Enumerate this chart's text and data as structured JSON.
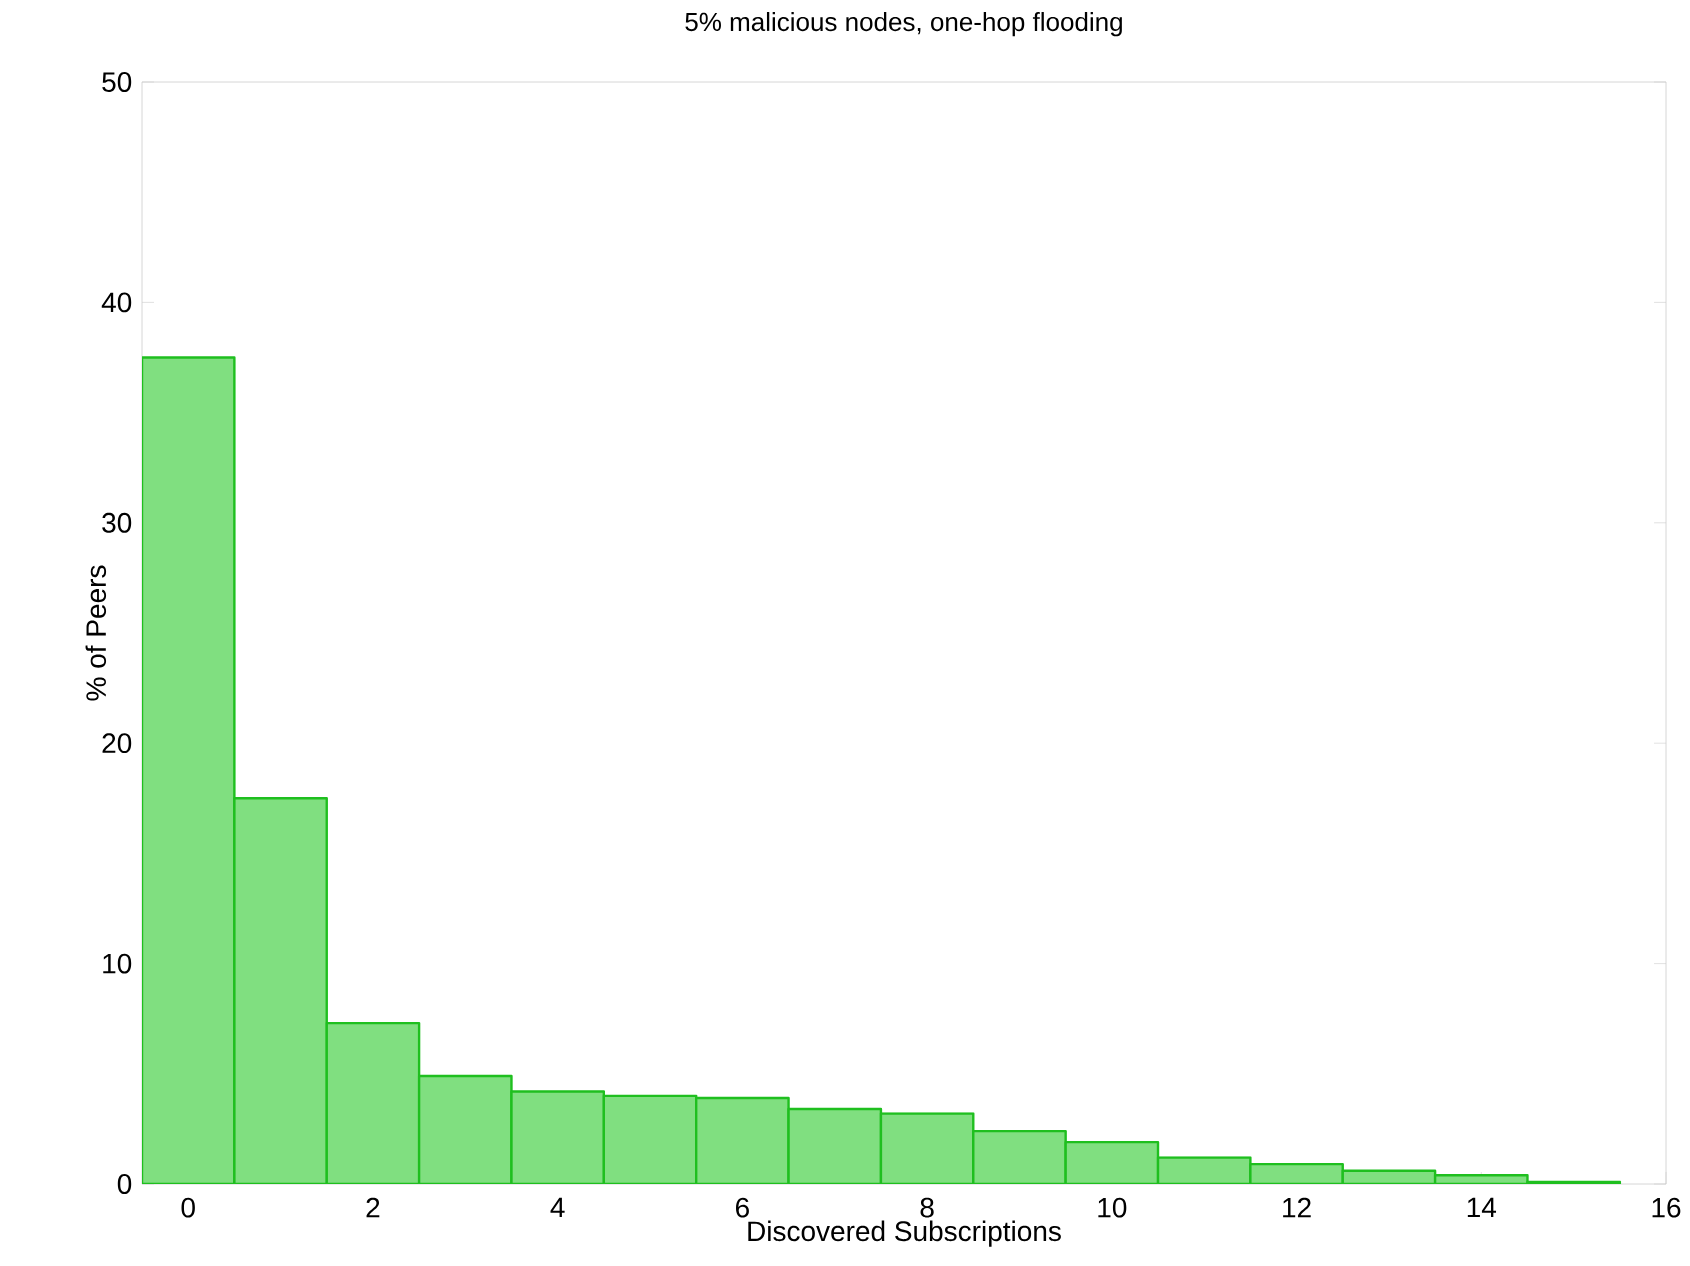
{
  "chart_data": {
    "type": "histogram",
    "title": "5% malicious nodes, one-hop flooding",
    "xlabel": "Discovered Subscriptions",
    "ylabel": "% of Peers",
    "bins": [
      -0.5,
      0.5,
      1.5,
      2.5,
      3.5,
      4.5,
      5.5,
      6.5,
      7.5,
      8.5,
      9.5,
      10.5,
      11.5,
      12.5,
      13.5,
      14.5,
      15.5
    ],
    "values": [
      37.5,
      17.5,
      7.3,
      4.9,
      4.2,
      4.0,
      3.9,
      3.4,
      3.2,
      2.4,
      1.9,
      1.2,
      0.9,
      0.6,
      0.4,
      0.1
    ],
    "color": "#80df80",
    "xlim": [
      -0.5,
      16
    ],
    "ylim": [
      0,
      50
    ],
    "xticks": [
      0,
      2,
      4,
      6,
      8,
      10,
      12,
      14,
      16
    ],
    "yticks": [
      0,
      10,
      20,
      30,
      40,
      50
    ],
    "grid": false
  }
}
